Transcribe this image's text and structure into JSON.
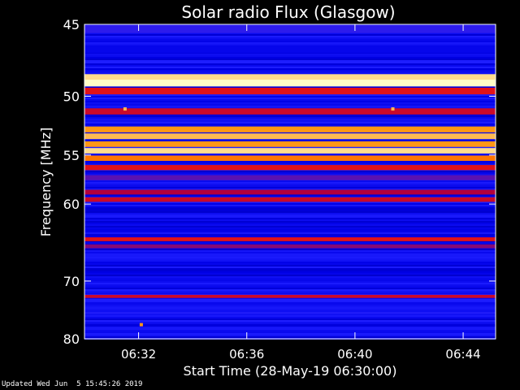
{
  "chart_data": {
    "type": "heatmap",
    "title": "Solar radio Flux (Glasgow)",
    "xlabel": "Start Time (28-May-19 06:30:00)",
    "ylabel": "Frequency [MHz]",
    "x_unit": "minutes after 06:30:00",
    "xlim": [
      0,
      15.2
    ],
    "ylim": [
      45,
      80
    ],
    "x_ticks": [
      {
        "minute": 2,
        "label": "06:32"
      },
      {
        "minute": 6,
        "label": "06:36"
      },
      {
        "minute": 10,
        "label": "06:40"
      },
      {
        "minute": 14,
        "label": "06:44"
      }
    ],
    "y_ticks": [
      45,
      50,
      55,
      60,
      70,
      80
    ],
    "colorscale": [
      "#00008c",
      "#0000e6",
      "#1e1eff",
      "#b4003c",
      "#ff1e00",
      "#ff8c00",
      "#ffffc8"
    ],
    "bands": [
      {
        "freq": 45.3,
        "level": 0.35
      },
      {
        "freq": 46.6,
        "level": 0.2
      },
      {
        "freq": 48.6,
        "level": 0.95
      },
      {
        "freq": 49.0,
        "level": 1.0
      },
      {
        "freq": 49.6,
        "level": 0.6
      },
      {
        "freq": 51.2,
        "level": 0.55
      },
      {
        "freq": 52.7,
        "level": 0.85
      },
      {
        "freq": 53.3,
        "level": 0.9
      },
      {
        "freq": 54.0,
        "level": 0.85
      },
      {
        "freq": 54.6,
        "level": 0.95
      },
      {
        "freq": 55.3,
        "level": 0.8
      },
      {
        "freq": 56.2,
        "level": 0.6
      },
      {
        "freq": 57.2,
        "level": 0.4
      },
      {
        "freq": 58.7,
        "level": 0.5
      },
      {
        "freq": 59.5,
        "level": 0.55
      },
      {
        "freq": 64.2,
        "level": 0.6
      },
      {
        "freq": 65.1,
        "level": 0.45
      },
      {
        "freq": 66.3,
        "level": 0.3
      },
      {
        "freq": 72.4,
        "level": 0.55
      },
      {
        "freq": 74.8,
        "level": 0.25
      },
      {
        "freq": 77.4,
        "level": 0.15
      }
    ],
    "spots": [
      {
        "minute": 1.5,
        "freq": 51.0,
        "level": 0.9
      },
      {
        "minute": 11.4,
        "freq": 51.0,
        "level": 0.9
      },
      {
        "minute": 2.1,
        "freq": 77.3,
        "level": 0.85
      }
    ]
  },
  "footer": "Updated Wed Jun  5 15:45:26 2019"
}
